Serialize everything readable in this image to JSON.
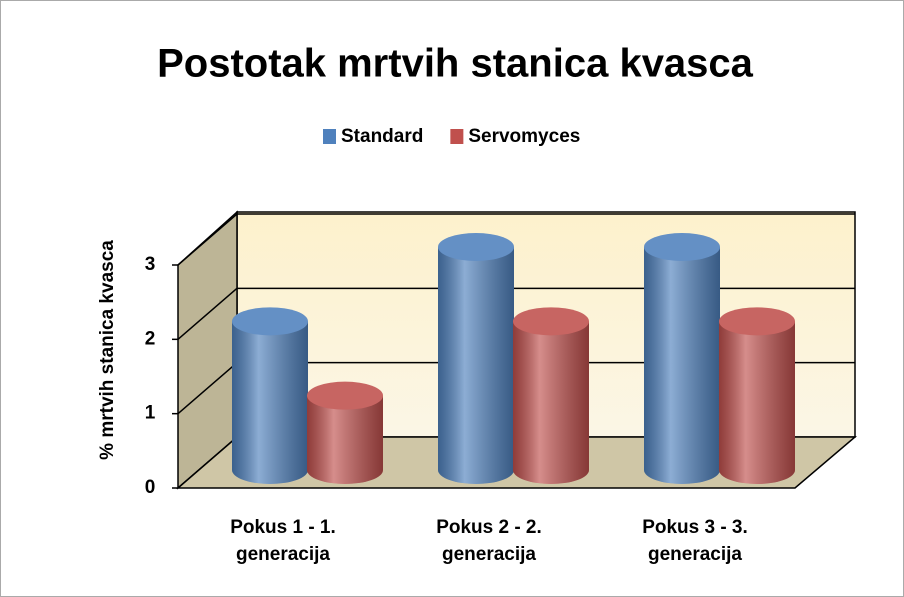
{
  "chart_data": {
    "type": "bar3d",
    "title": "Postotak mrtvih stanica kvasca",
    "y_label": "% mrtvih stanica kvasca",
    "categories": [
      "Pokus 1 - 1. generacija",
      "Pokus 2 - 2. generacija",
      "Pokus 3 - 3. generacija"
    ],
    "series": [
      {
        "name": "Standard",
        "color": "#4f81bd",
        "values": [
          2,
          3,
          3
        ]
      },
      {
        "name": "Servomyces",
        "color": "#c0504d",
        "values": [
          1,
          2,
          2
        ]
      }
    ],
    "ylim": [
      0,
      3
    ],
    "yticks": [
      0,
      1,
      2,
      3
    ],
    "grid": true,
    "legend": "top"
  }
}
